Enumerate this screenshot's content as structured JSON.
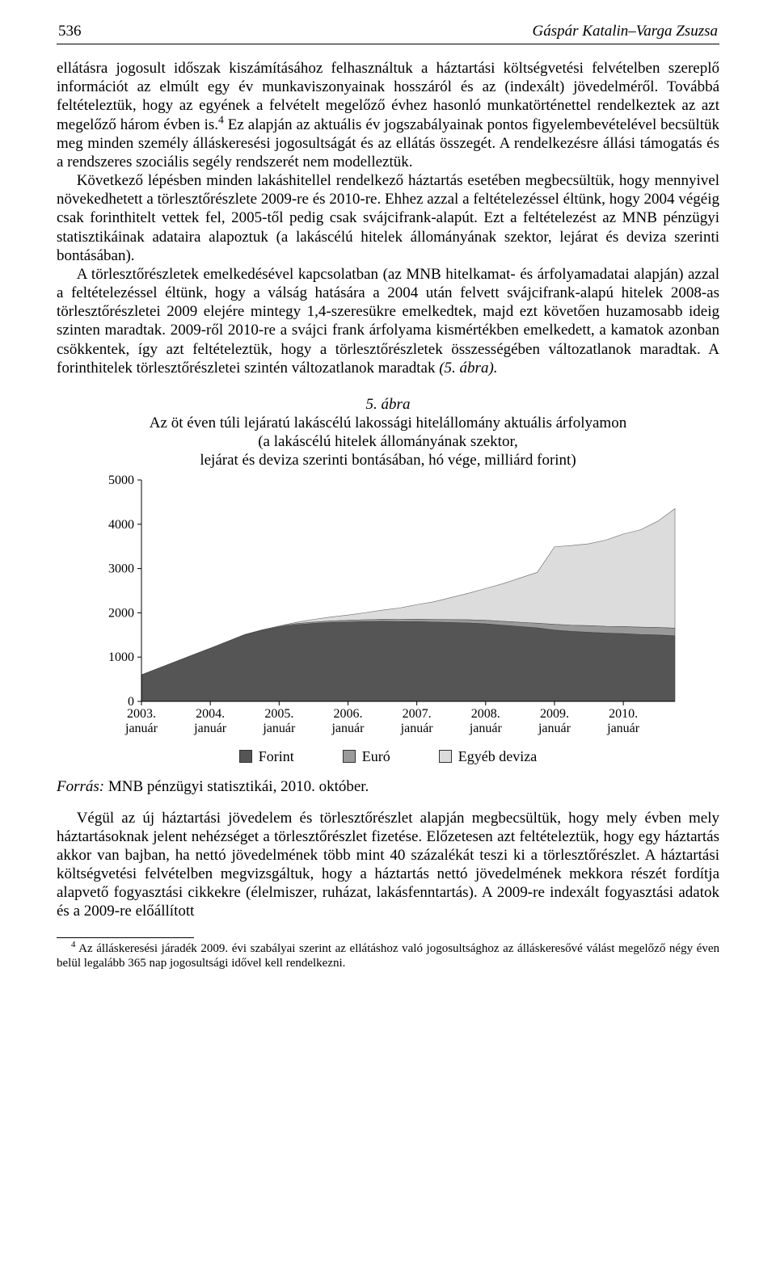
{
  "header": {
    "page_number": "536",
    "running_title": "Gáspár Katalin–Varga Zsuzsa"
  },
  "paragraphs": {
    "p1": "ellátásra jogosult időszak kiszámításához felhasználtuk a háztartási költségvetési felvételben szereplő információt az elmúlt egy év munkaviszonyainak hosszáról és az (indexált) jövedelméről. Továbbá feltételeztük, hogy az egyének a felvételt megelőző évhez hasonló munkatörténettel rendelkeztek az azt megelőző három évben is.",
    "p1_sup": "4",
    "p1_cont": " Ez alapján az aktuális év jogszabályainak pontos figyelembevételével becsültük meg minden személy álláskeresési jogosultságát és az ellátás összegét. A rendelkezésre állási támogatás és a rendszeres szociális segély rendszerét nem modelleztük.",
    "p2": "Következő lépésben minden lakáshitellel rendelkező háztartás esetében megbecsültük, hogy mennyivel növekedhetett a törlesztőrészlete 2009-re és 2010-re. Ehhez azzal a feltételezéssel éltünk, hogy 2004 végéig csak forinthitelt vettek fel, 2005-től pedig csak svájcifrank-alapút. Ezt a feltételezést az MNB pénzügyi statisztikáinak adataira alapoztuk (a lakáscélú hitelek állományának szektor, lejárat és deviza szerinti bontásában).",
    "p3": "A törlesztőrészletek emelkedésével kapcsolatban (az MNB hitelkamat- és árfolyamadatai alapján) azzal a feltételezéssel éltünk, hogy a válság hatására a 2004 után felvett svájcifrank-alapú hitelek 2008-as törlesztőrészletei 2009 elejére mintegy 1,4-szeresükre emelkedtek, majd ezt követően huzamosabb ideig szinten maradtak. 2009-ről 2010-re a svájci frank árfolyama kismértékben emelkedett, a kamatok azonban csökkentek, így azt feltételeztük, hogy a törlesztőrészletek összességében változatlanok maradtak. A forinthitelek törlesztőrészletei szintén változatlanok maradtak ",
    "p3_ref": "(5. ábra).",
    "p4": "Végül az új háztartási jövedelem és törlesztőrészlet alapján megbecsültük, hogy mely évben mely háztartásoknak jelent nehézséget a törlesztőrészlet fizetése. Előzetesen azt feltételeztük, hogy egy háztartás akkor van bajban, ha nettó jövedelmének több mint 40 százalékát teszi ki a törlesztőrészlet. A háztartási költségvetési felvételben megvizsgáltuk, hogy a háztartás nettó jövedelmének mekkora részét fordítja alapvető fogyasztási cikkekre (élelmiszer, ruházat, lakásfenntartás). A 2009-re indexált fogyasztási adatok és a 2009-re előállított"
  },
  "figure": {
    "number": "5. ábra",
    "title_line1": "Az öt éven túli lejáratú lakáscélú lakossági hitelállomány aktuális árfolyamon",
    "title_line2": "(a lakáscélú hitelek állományának szektor,",
    "title_line3": "lejárat és deviza szerinti bontásában, hó vége, milliárd forint)",
    "legend": {
      "forint": "Forint",
      "euro": "Euró",
      "other": "Egyéb deviza"
    },
    "source_label": "Forrás:",
    "source_text": " MNB pénzügyi statisztikái, 2010. október."
  },
  "chart": {
    "type": "stacked-area",
    "background_color": "#ffffff",
    "axis_color": "#000000",
    "text_color": "#000000",
    "axis_fontsize": 16,
    "ylim": [
      0,
      5000
    ],
    "ytick_step": 1000,
    "yticks": [
      "0",
      "1000",
      "2000",
      "3000",
      "4000",
      "5000"
    ],
    "xticks": [
      {
        "l1": "2003.",
        "l2": "január"
      },
      {
        "l1": "2004.",
        "l2": "január"
      },
      {
        "l1": "2005.",
        "l2": "január"
      },
      {
        "l1": "2006.",
        "l2": "január"
      },
      {
        "l1": "2007.",
        "l2": "január"
      },
      {
        "l1": "2008.",
        "l2": "január"
      },
      {
        "l1": "2009.",
        "l2": "január"
      },
      {
        "l1": "2010.",
        "l2": "január"
      }
    ],
    "colors": {
      "forint": "#555555",
      "euro": "#9a9a9a",
      "other": "#dcdcdc"
    },
    "series_x_months": [
      0,
      3,
      6,
      9,
      12,
      15,
      18,
      21,
      24,
      27,
      30,
      33,
      36,
      39,
      42,
      45,
      48,
      51,
      54,
      57,
      60,
      63,
      66,
      69,
      72,
      75,
      78,
      81,
      84,
      87,
      90,
      93
    ],
    "forint_values": [
      600,
      750,
      900,
      1050,
      1200,
      1350,
      1500,
      1600,
      1680,
      1730,
      1760,
      1780,
      1790,
      1800,
      1805,
      1800,
      1800,
      1790,
      1780,
      1770,
      1750,
      1720,
      1690,
      1660,
      1610,
      1580,
      1560,
      1540,
      1530,
      1510,
      1500,
      1480
    ],
    "euro_values": [
      0,
      0,
      0,
      0,
      0,
      5,
      10,
      15,
      20,
      25,
      30,
      35,
      40,
      43,
      46,
      50,
      55,
      60,
      66,
      72,
      80,
      88,
      96,
      104,
      130,
      140,
      150,
      155,
      160,
      165,
      168,
      172
    ],
    "other_values": [
      0,
      0,
      0,
      0,
      0,
      0,
      0,
      0,
      0,
      30,
      60,
      90,
      120,
      160,
      210,
      260,
      330,
      400,
      500,
      600,
      720,
      850,
      1000,
      1150,
      1750,
      1800,
      1850,
      1950,
      2090,
      2200,
      2400,
      2700
    ]
  },
  "footnote": {
    "marker": "4",
    "text": " Az álláskeresési járadék 2009. évi szabályai szerint az ellátáshoz való jogosultsághoz az álláskeresővé válást megelőző négy éven belül legalább 365 nap jogosultsági idővel kell rendelkezni."
  }
}
